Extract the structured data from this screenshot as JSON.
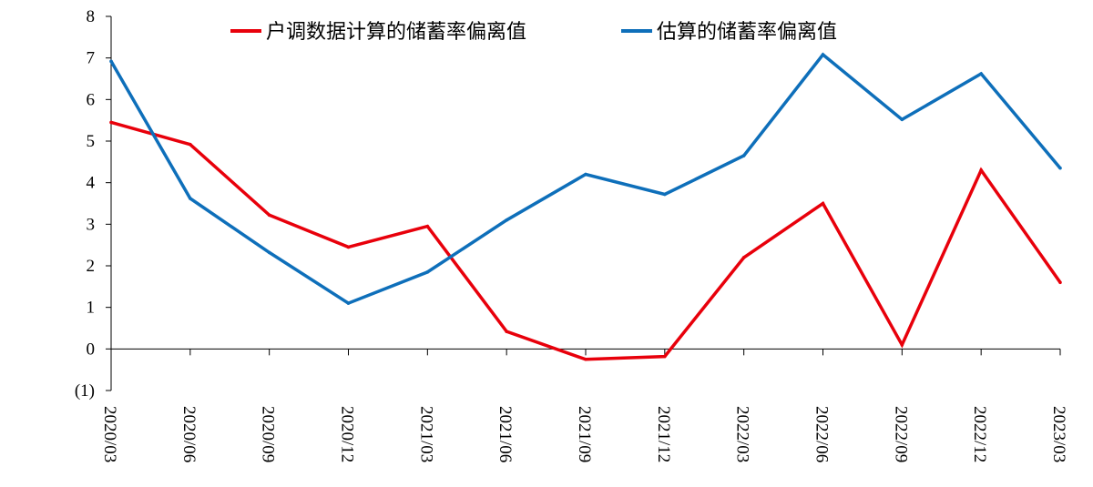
{
  "chart_data": {
    "type": "line",
    "title": "",
    "xlabel": "",
    "ylabel": "",
    "ylim": [
      -1,
      8
    ],
    "y_ticks": [
      {
        "value": -1,
        "label": "(1)",
        "color": "#e8000b"
      },
      {
        "value": 0,
        "label": "0",
        "color": "#000000"
      },
      {
        "value": 1,
        "label": "1",
        "color": "#000000"
      },
      {
        "value": 2,
        "label": "2",
        "color": "#000000"
      },
      {
        "value": 3,
        "label": "3",
        "color": "#000000"
      },
      {
        "value": 4,
        "label": "4",
        "color": "#000000"
      },
      {
        "value": 5,
        "label": "5",
        "color": "#000000"
      },
      {
        "value": 6,
        "label": "6",
        "color": "#000000"
      },
      {
        "value": 7,
        "label": "7",
        "color": "#000000"
      },
      {
        "value": 8,
        "label": "8",
        "color": "#000000"
      }
    ],
    "categories": [
      "2020/03",
      "2020/06",
      "2020/09",
      "2020/12",
      "2021/03",
      "2021/06",
      "2021/09",
      "2021/12",
      "2022/03",
      "2022/06",
      "2022/09",
      "2022/12",
      "2023/03"
    ],
    "grid": false,
    "legend_position": "top",
    "series": [
      {
        "name": "户调数据计算的储蓄率偏离值",
        "color": "#e8000b",
        "values": [
          5.45,
          4.92,
          3.22,
          2.45,
          2.95,
          0.42,
          -0.25,
          -0.18,
          2.2,
          3.5,
          0.1,
          4.3,
          1.6
        ]
      },
      {
        "name": "估算的储蓄率偏离值",
        "color": "#0e6fba",
        "values": [
          6.92,
          3.62,
          2.32,
          1.1,
          1.85,
          3.1,
          4.2,
          3.72,
          4.65,
          7.08,
          5.52,
          6.62,
          4.35
        ]
      }
    ]
  }
}
